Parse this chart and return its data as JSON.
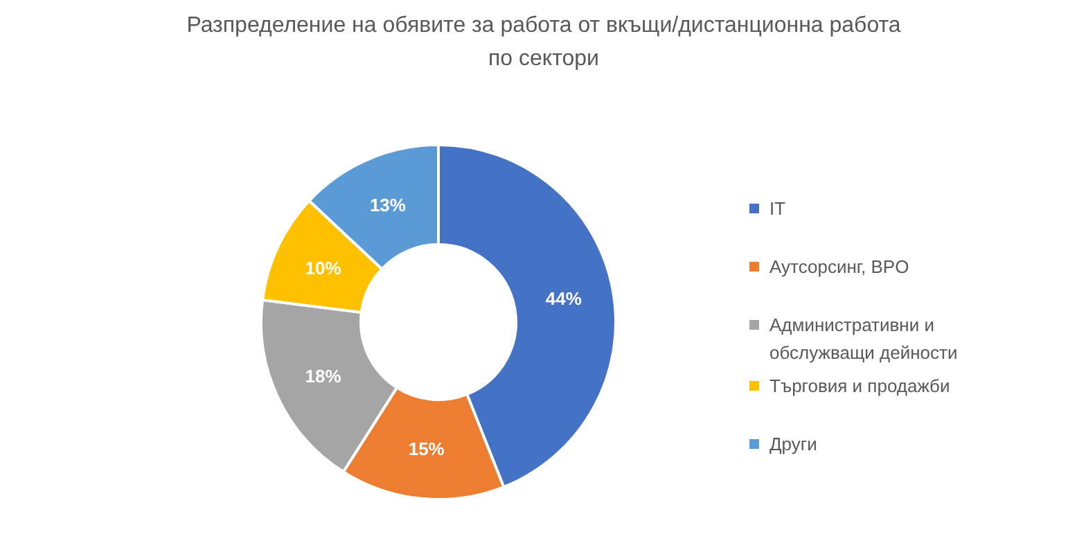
{
  "chart_data": {
    "type": "donut",
    "title": "Разпределение на обявите за работа от вкъщи/дистанционна работа по сектори",
    "categories": [
      "IT",
      "Аутсорсинг, BPO",
      "Административни и обслужващи дейности",
      "Търговия и продажби",
      "Други"
    ],
    "values": [
      44,
      15,
      18,
      10,
      13
    ],
    "colors": [
      "#4472c4",
      "#ed7d31",
      "#a5a5a5",
      "#ffc000",
      "#5b9bd5"
    ],
    "value_labels": [
      "44%",
      "15%",
      "18%",
      "10%",
      "13%"
    ],
    "legend": "right"
  }
}
